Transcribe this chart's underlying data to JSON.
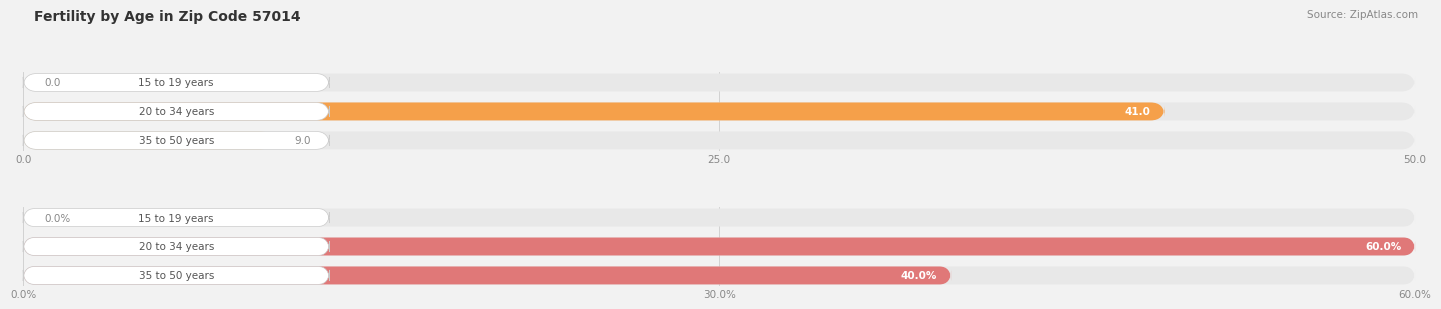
{
  "title": "Fertility by Age in Zip Code 57014",
  "source": "Source: ZipAtlas.com",
  "top_section": {
    "categories": [
      "15 to 19 years",
      "20 to 34 years",
      "35 to 50 years"
    ],
    "values": [
      0.0,
      41.0,
      9.0
    ],
    "xmax": 50.0,
    "xticks": [
      0.0,
      25.0,
      50.0
    ],
    "xtick_labels": [
      "0.0",
      "25.0",
      "50.0"
    ],
    "bar_color": "#F5A04A",
    "bar_color_light": "#F9CE8A",
    "bar_bg": "#E8E8E8"
  },
  "bottom_section": {
    "categories": [
      "15 to 19 years",
      "20 to 34 years",
      "35 to 50 years"
    ],
    "values": [
      0.0,
      60.0,
      40.0
    ],
    "xmax": 60.0,
    "xticks": [
      0.0,
      30.0,
      60.0
    ],
    "xtick_labels": [
      "0.0%",
      "30.0%",
      "60.0%"
    ],
    "bar_color": "#E07878",
    "bar_color_light": "#EDA8A8",
    "bar_bg": "#E8E8E8"
  },
  "bg_color": "#F2F2F2",
  "bar_height": 0.62,
  "label_fontsize": 7.5,
  "cat_fontsize": 7.5,
  "title_fontsize": 10,
  "source_fontsize": 7.5,
  "cat_label_bg": "#FFFFFF",
  "cat_label_color": "#555555",
  "value_color_inside": "#FFFFFF",
  "value_color_outside": "#888888"
}
